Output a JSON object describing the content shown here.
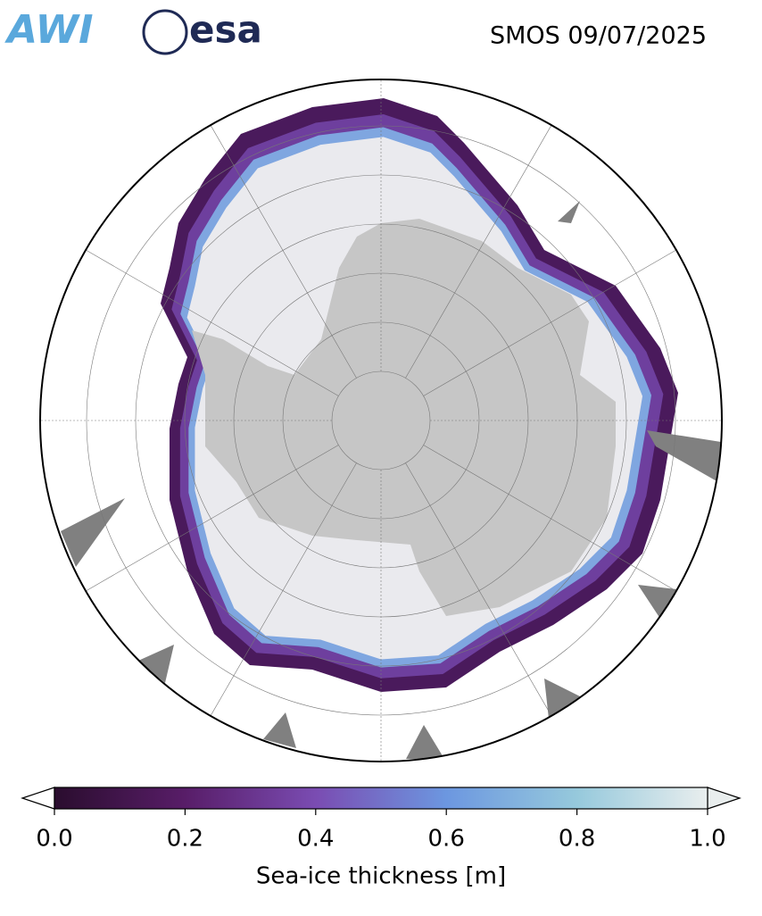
{
  "header": {
    "logos": [
      "AWI",
      "esa"
    ],
    "title": "SMOS 09/07/2025"
  },
  "colorbar": {
    "label": "Sea-ice thickness [m]",
    "lim": [
      0,
      1
    ],
    "ticks": [
      {
        "value": 0,
        "label": "0.0"
      },
      0.2,
      0.4,
      0.6,
      0.8,
      {
        "value": 1,
        "label": "1.0"
      }
    ]
  }
}
